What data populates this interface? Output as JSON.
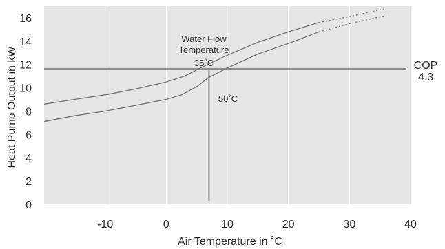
{
  "chart_data": {
    "type": "line",
    "xlabel": "Air Temperature in ˚C",
    "ylabel": "Heat Pump Output in kW",
    "xlim": [
      -20,
      40
    ],
    "ylim": [
      0,
      17
    ],
    "xticks": [
      -10,
      0,
      10,
      20,
      30,
      40
    ],
    "yticks": [
      0,
      2,
      4,
      6,
      8,
      10,
      12,
      14,
      16
    ],
    "grid": "vertical",
    "colors": {
      "plot_bg": "#e6e6e6",
      "grid": "#ffffff",
      "curve": "#707070",
      "reference": "#8a8a8a",
      "text": "#2d2d2d"
    },
    "series": [
      {
        "name": "35˚C",
        "points": [
          [
            -20,
            8.6
          ],
          [
            -15,
            9.0
          ],
          [
            -10,
            9.4
          ],
          [
            -5,
            9.9
          ],
          [
            0,
            10.5
          ],
          [
            3,
            11.0
          ],
          [
            6,
            11.8
          ],
          [
            10,
            12.8
          ],
          [
            15,
            13.9
          ],
          [
            20,
            14.8
          ],
          [
            25,
            15.6
          ]
        ],
        "extrapolated": [
          [
            25,
            15.6
          ],
          [
            30,
            16.1
          ],
          [
            36,
            16.8
          ]
        ]
      },
      {
        "name": "50˚C",
        "points": [
          [
            -20,
            7.1
          ],
          [
            -15,
            7.6
          ],
          [
            -10,
            8.0
          ],
          [
            -5,
            8.5
          ],
          [
            0,
            9.0
          ],
          [
            2.5,
            9.4
          ],
          [
            5,
            10.1
          ],
          [
            7,
            10.9
          ],
          [
            10,
            11.7
          ],
          [
            15,
            12.9
          ],
          [
            20,
            13.8
          ],
          [
            25,
            14.8
          ]
        ],
        "extrapolated": [
          [
            25,
            14.8
          ],
          [
            30,
            15.5
          ],
          [
            36,
            16.2
          ]
        ]
      }
    ],
    "reference_lines": [
      {
        "orientation": "horizontal",
        "value": 11.6,
        "label": "COP",
        "sublabel": "4.3"
      },
      {
        "orientation": "vertical",
        "value": 7
      }
    ],
    "annotations": {
      "legend_title_line1": "Water Flow",
      "legend_title_line2": "Temperature",
      "series1_label": "35˚C",
      "series2_label": "50˚C"
    }
  }
}
